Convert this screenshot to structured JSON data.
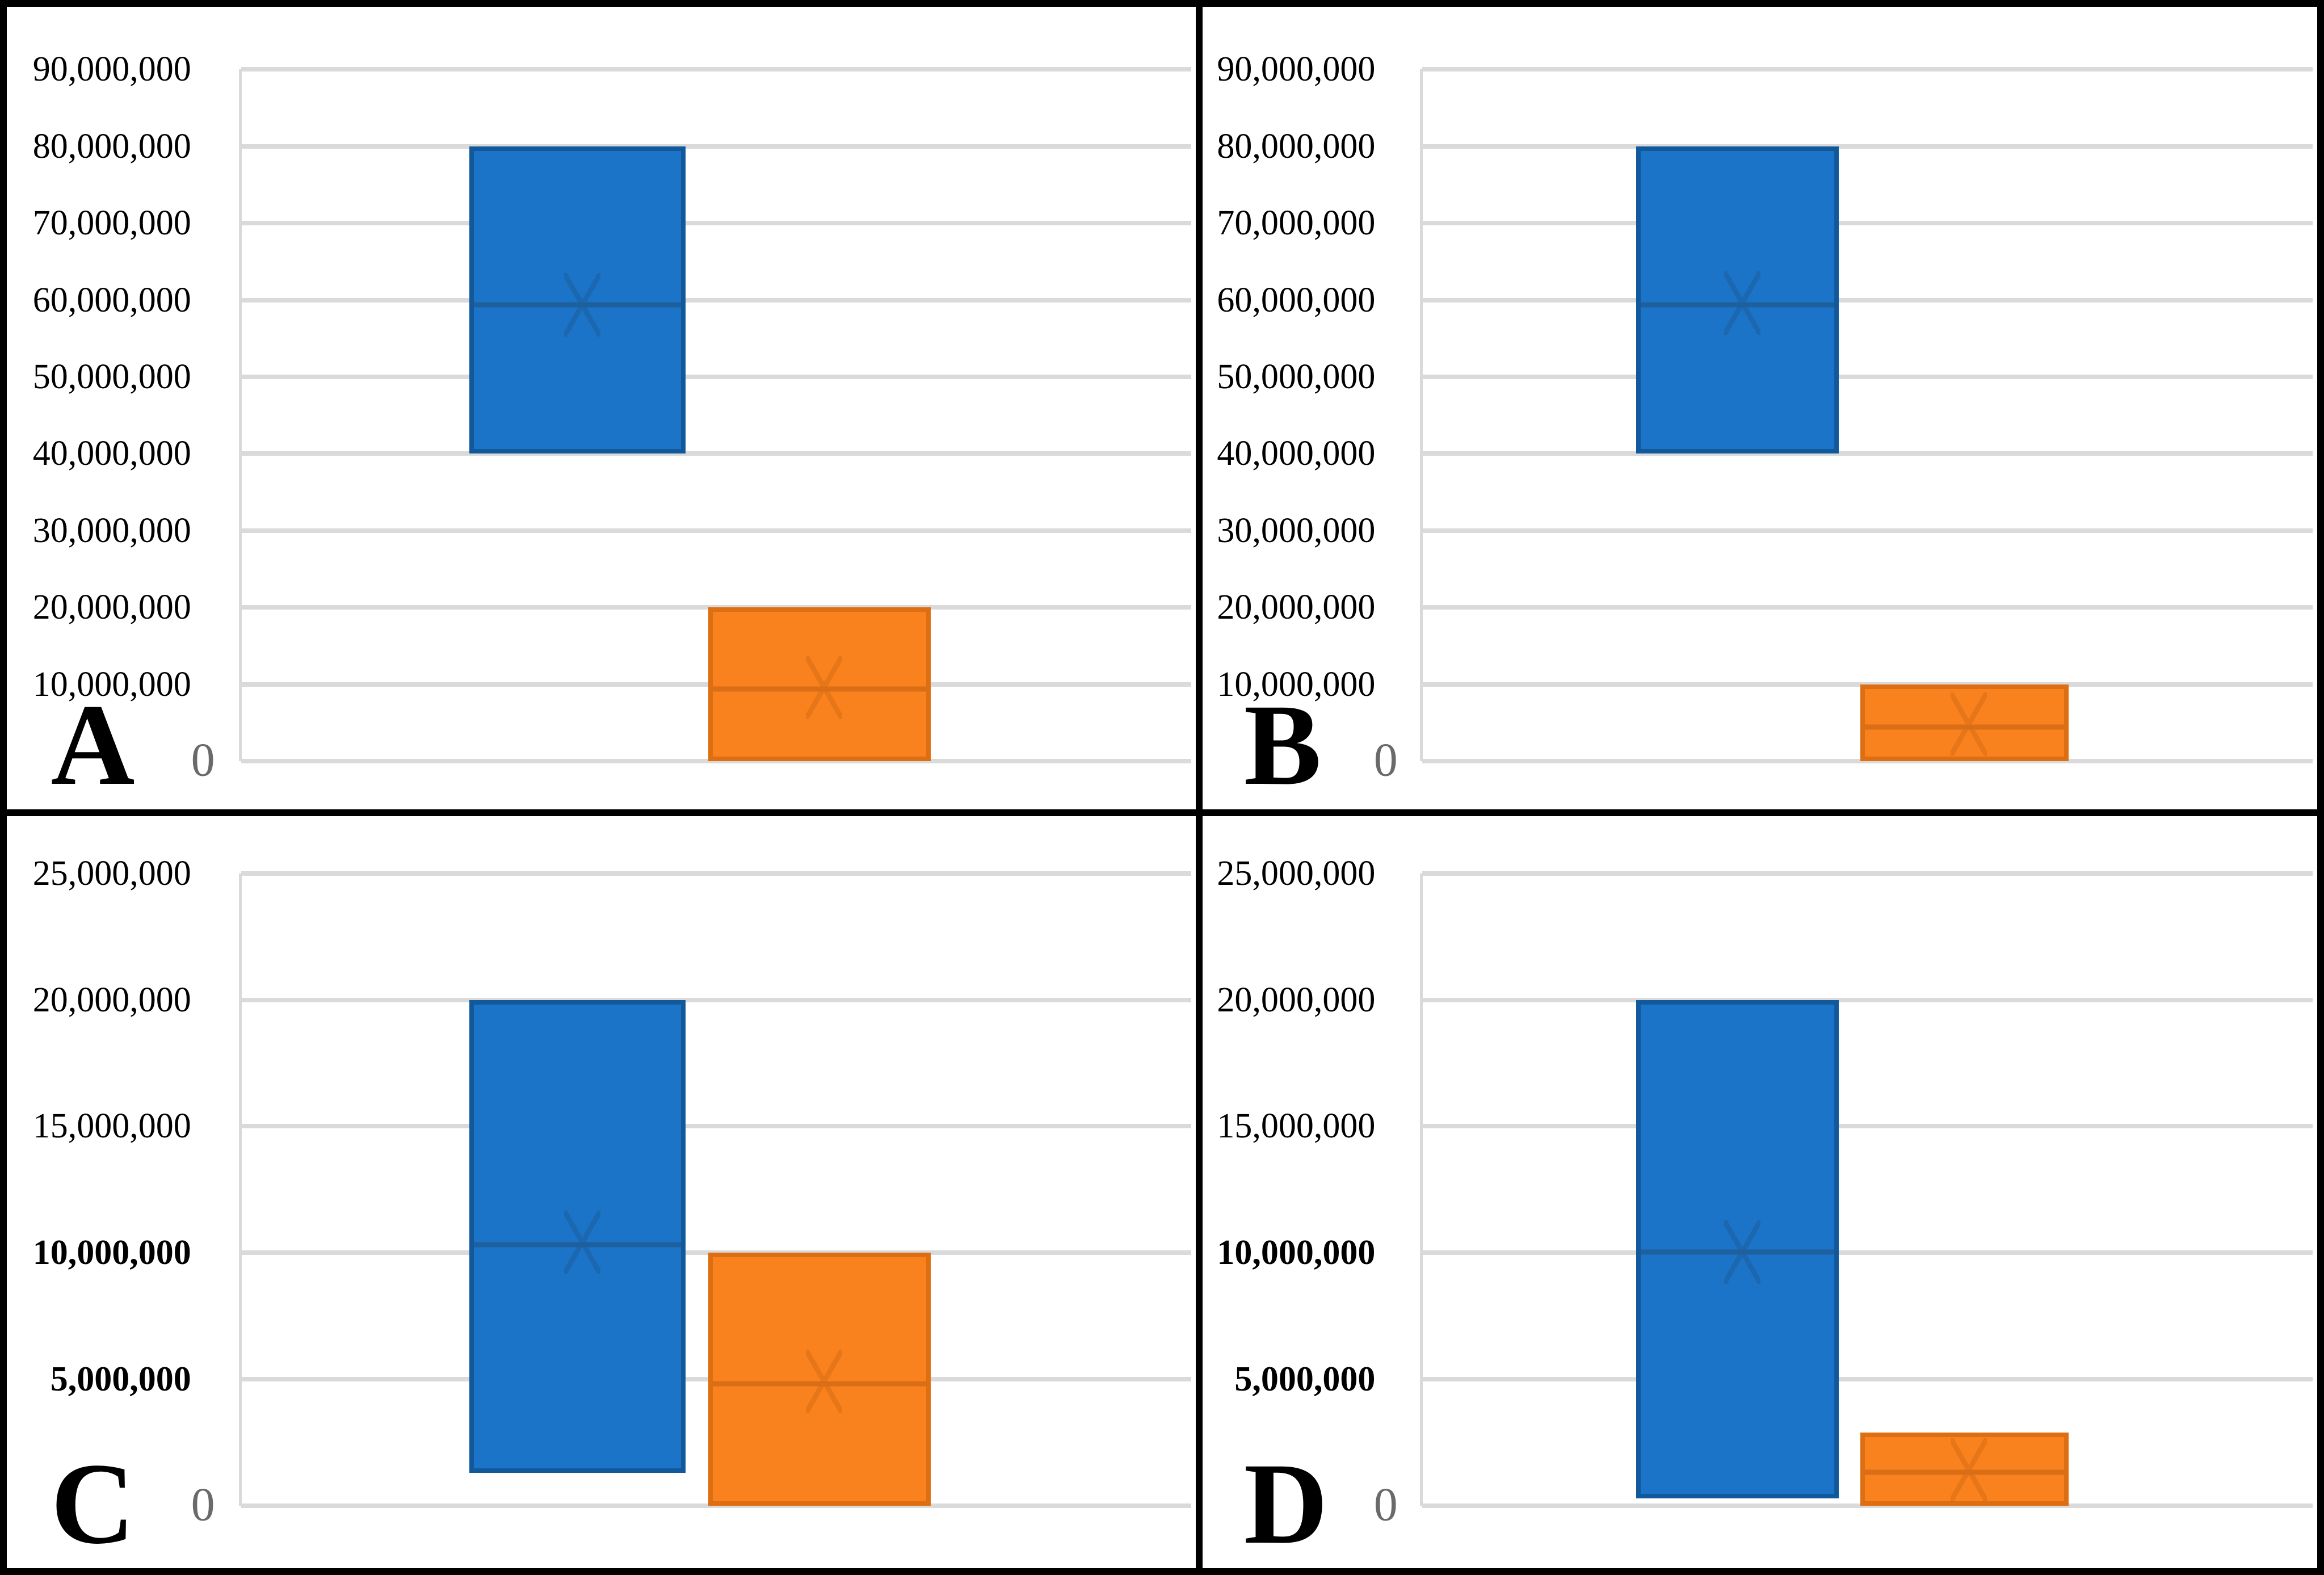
{
  "figure": {
    "background": "#ffffff",
    "border_color": "#000000",
    "gridline_color": "#DADADA",
    "series_colors": {
      "blue_fill": "#1B74C8",
      "blue_border": "#12599C",
      "blue_median": "#1E5F9E",
      "orange_fill": "#F9821E",
      "orange_border": "#DE6E12",
      "orange_median": "#D96E16"
    }
  },
  "chart_data": [
    {
      "panel": "A",
      "type": "box",
      "row": 1,
      "y_axis": {
        "min": 0,
        "max": 90000000,
        "tick_interval": 10000000,
        "tick_labels": [
          "90,000,000",
          "80,000,000",
          "70,000,000",
          "60,000,000",
          "50,000,000",
          "40,000,000",
          "30,000,000",
          "20,000,000",
          "10,000,000"
        ],
        "zero_label": "0",
        "bold_labels": [],
        "grid": true
      },
      "series": [
        {
          "name": "blue-box",
          "fill": "#1B74C8",
          "border": "#12599C",
          "median_color": "#1E5F9E",
          "min": 40000000,
          "max": 80000000,
          "median": 60000000,
          "mean": 60000000
        },
        {
          "name": "orange-box",
          "fill": "#F9821E",
          "border": "#DE6E12",
          "median_color": "#D96E16",
          "min": 0,
          "max": 20000000,
          "median": 10000000,
          "mean": 10200000
        }
      ]
    },
    {
      "panel": "B",
      "type": "box",
      "row": 1,
      "y_axis": {
        "min": 0,
        "max": 90000000,
        "tick_interval": 10000000,
        "tick_labels": [
          "90,000,000",
          "80,000,000",
          "70,000,000",
          "60,000,000",
          "50,000,000",
          "40,000,000",
          "30,000,000",
          "20,000,000",
          "10,000,000"
        ],
        "zero_label": "0",
        "bold_labels": [],
        "grid": true
      },
      "series": [
        {
          "name": "blue-box",
          "fill": "#1B74C8",
          "border": "#12599C",
          "median_color": "#1E5F9E",
          "min": 40000000,
          "max": 80000000,
          "median": 60000000,
          "mean": 60200000
        },
        {
          "name": "orange-box",
          "fill": "#F9821E",
          "border": "#DE6E12",
          "median_color": "#D96E16",
          "min": 0,
          "max": 10000000,
          "median": 5000000,
          "mean": 5400000
        }
      ]
    },
    {
      "panel": "C",
      "type": "box",
      "row": 2,
      "y_axis": {
        "min": 0,
        "max": 25000000,
        "tick_interval": 5000000,
        "tick_labels": [
          "25,000,000",
          "20,000,000",
          "15,000,000",
          "10,000,000",
          "5,000,000"
        ],
        "zero_label": "0",
        "bold_labels": [
          "10,000,000",
          "5,000,000"
        ],
        "grid": true
      },
      "series": [
        {
          "name": "blue-box",
          "fill": "#1B74C8",
          "border": "#12599C",
          "median_color": "#1E5F9E",
          "min": 1300000,
          "max": 20000000,
          "median": 10500000,
          "mean": 10600000
        },
        {
          "name": "orange-box",
          "fill": "#F9821E",
          "border": "#DE6E12",
          "median_color": "#D96E16",
          "min": 0,
          "max": 10000000,
          "median": 5000000,
          "mean": 5100000
        }
      ]
    },
    {
      "panel": "D",
      "type": "box",
      "row": 2,
      "y_axis": {
        "min": 0,
        "max": 25000000,
        "tick_interval": 5000000,
        "tick_labels": [
          "25,000,000",
          "20,000,000",
          "15,000,000",
          "10,000,000",
          "5,000,000"
        ],
        "zero_label": "0",
        "bold_labels": [
          "10,000,000",
          "5,000,000"
        ],
        "grid": true
      },
      "series": [
        {
          "name": "blue-box",
          "fill": "#1B74C8",
          "border": "#12599C",
          "median_color": "#1E5F9E",
          "min": 300000,
          "max": 20000000,
          "median": 10200000,
          "mean": 10200000
        },
        {
          "name": "orange-box",
          "fill": "#F9821E",
          "border": "#DE6E12",
          "median_color": "#D96E16",
          "min": 0,
          "max": 2900000,
          "median": 1500000,
          "mean": 1600000
        }
      ]
    }
  ]
}
